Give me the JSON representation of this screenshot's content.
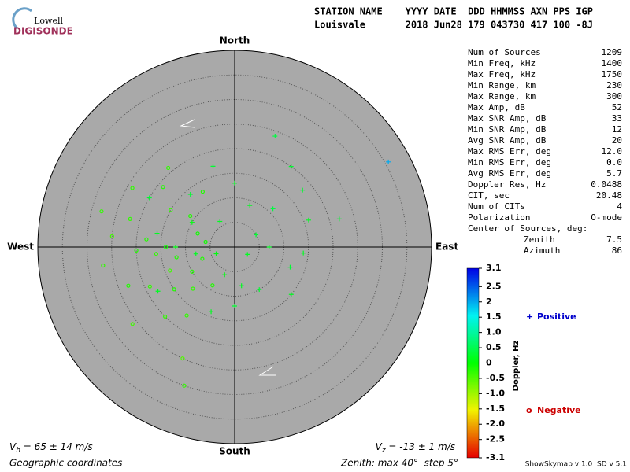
{
  "logo": {
    "top": "Lowell",
    "bottom": "DIGISONDE"
  },
  "header": {
    "lines": [
      "STATION NAME    YYYY DATE  DDD HHMMSS AXN PPS IGP",
      "Louisvale       2018 Jun28 179 043730 417 100 -8J"
    ]
  },
  "stats": {
    "rows": [
      [
        "Num of Sources",
        "1209"
      ],
      [
        "Min Freq, kHz",
        "1400"
      ],
      [
        "Max Freq, kHz",
        "1750"
      ],
      [
        "Min Range, km",
        "230"
      ],
      [
        "Max Range, km",
        "300"
      ],
      [
        "Max Amp, dB",
        "52"
      ],
      [
        "Max SNR Amp, dB",
        "33"
      ],
      [
        "Min SNR Amp, dB",
        "12"
      ],
      [
        "Avg SNR Amp, dB",
        "20"
      ],
      [
        "Max RMS Err, deg",
        "12.0"
      ],
      [
        "Min RMS Err, deg",
        "0.0"
      ],
      [
        "Avg RMS Err, deg",
        "5.7"
      ],
      [
        "Doppler Res, Hz",
        "0.0488"
      ],
      [
        "CIT, sec",
        "20.48"
      ],
      [
        "Num of CITs",
        "4"
      ],
      [
        "Polarization",
        "O-mode"
      ]
    ],
    "center_title": "Center of Sources, deg:",
    "center_rows": [
      [
        "Zenith",
        "7.5"
      ],
      [
        "Azimuth",
        "86"
      ]
    ]
  },
  "footer": {
    "vh": [
      "V",
      "h",
      " = 65 ± 14 m/s"
    ],
    "vz": [
      "V",
      "z",
      " = -13 ± 1 m/s"
    ],
    "coords": "Geographic coordinates",
    "zenith_note": "Zenith: max 40°  step 5°",
    "version": "ShowSkymap v 1.0  SD v 5.1"
  },
  "chart_data": {
    "type": "polar_scatter",
    "directions": {
      "north": "North",
      "south": "South",
      "west": "West",
      "east": "East"
    },
    "rlim": [
      0,
      40
    ],
    "rticks": [
      5,
      10,
      15,
      20,
      25,
      30,
      35
    ],
    "colorbar": {
      "label": "Doppler, Hz",
      "zlim": [
        -3.1,
        3.1
      ],
      "zticks": [
        3.1,
        2.5,
        2,
        1.5,
        {
          "value": 1,
          "label": "1.0"
        },
        0.5,
        0,
        -0.5,
        {
          "value": -1,
          "label": "-1.0"
        },
        -1.5,
        {
          "value": -2,
          "label": "-2.0"
        },
        -2.5,
        -3.1
      ]
    },
    "series": [
      {
        "name": "Positive",
        "symbol": "+",
        "color": "#0000cc",
        "zenith": [
          35.7,
          24,
          20,
          18,
          16,
          14,
          12,
          15,
          10,
          8,
          12,
          14,
          6,
          4,
          8,
          12,
          16,
          10,
          6,
          14,
          9,
          5,
          3,
          18,
          20,
          7,
          11,
          22,
          13,
          17
        ],
        "azimuth": [
          61,
          20,
          35,
          50,
          70,
          95,
          110,
          130,
          150,
          170,
          180,
          200,
          200,
          250,
          260,
          270,
          280,
          300,
          330,
          320,
          20,
          60,
          120,
          240,
          300,
          90,
          45,
          75,
          0,
          345
        ],
        "doppler": [
          2.0,
          0.4,
          0.3,
          0.3,
          0.2,
          0.2,
          0.3,
          0.2,
          0.3,
          0.2,
          0.3,
          0.2,
          0.1,
          0.1,
          0.2,
          0.1,
          0.2,
          0.1,
          0.2,
          0.3,
          0.2,
          0.3,
          0.2,
          0.2,
          0.3,
          0.2,
          0.4,
          0.3,
          0.2,
          0.3
        ]
      },
      {
        "name": "Negative",
        "symbol": "o",
        "color": "#cc0000",
        "zenith": [
          12,
          14,
          16,
          18,
          20,
          22,
          25,
          27,
          10,
          12,
          15,
          19,
          23,
          8,
          11,
          15,
          19,
          24,
          26,
          30,
          25,
          9,
          6,
          17,
          13,
          21,
          28,
          14,
          7,
          20
        ],
        "azimuth": [
          260,
          270,
          265,
          275,
          268,
          285,
          275,
          262,
          240,
          225,
          235,
          245,
          250,
          290,
          305,
          300,
          310,
          300,
          233,
          200,
          205,
          210,
          280,
          215,
          330,
          320,
          285,
          250,
          250,
          225
        ],
        "doppler": [
          -0.2,
          -0.1,
          -0.3,
          -0.2,
          -0.2,
          -0.3,
          -0.4,
          -0.3,
          -0.2,
          -0.3,
          -0.2,
          -0.3,
          -0.2,
          -0.1,
          -0.2,
          -0.3,
          -0.2,
          -0.3,
          -0.4,
          -0.3,
          -0.5,
          -0.2,
          -0.1,
          -0.3,
          -0.2,
          -0.3,
          -0.3,
          -0.4,
          -0.2,
          -0.3
        ]
      }
    ]
  }
}
